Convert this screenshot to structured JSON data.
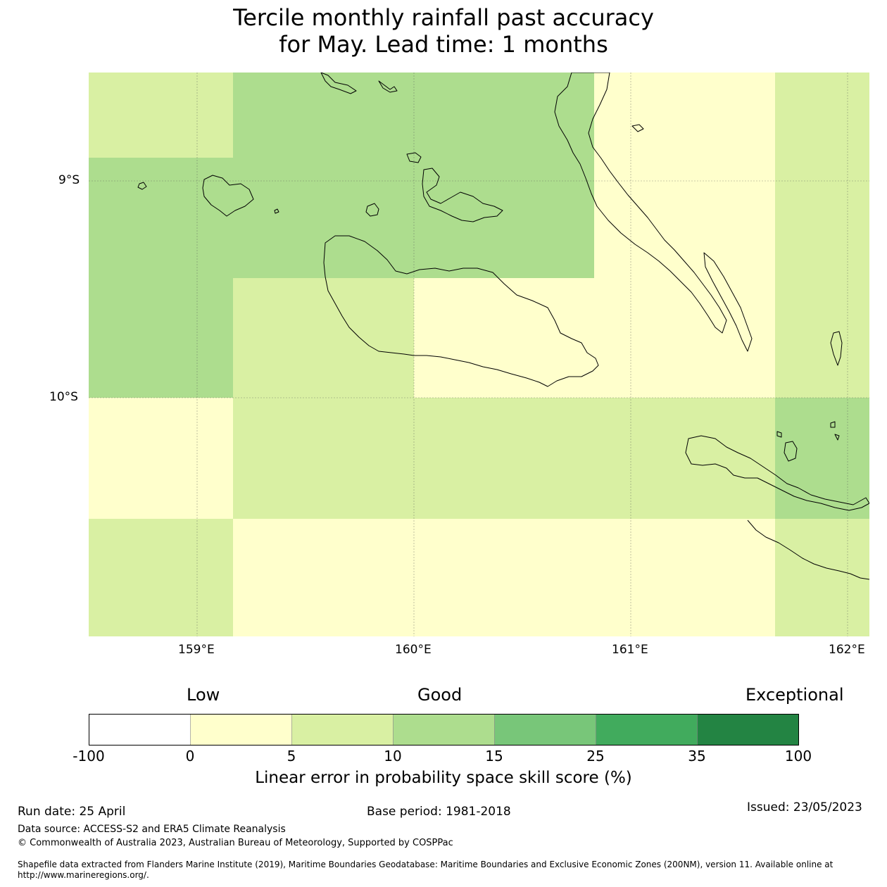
{
  "title": {
    "line1": "Tercile monthly rainfall past accuracy",
    "line2": "for May. Lead time: 1 months"
  },
  "map": {
    "lon_range": [
      158.5,
      162.1
    ],
    "lat_range": [
      -11.1,
      -8.5
    ],
    "x_ticks": [
      "159°E",
      "160°E",
      "161°E",
      "162°E"
    ],
    "y_ticks": [
      "9°S",
      "10°S"
    ],
    "grid": true
  },
  "colorbar": {
    "categories": [
      "Low",
      "Good",
      "Exceptional"
    ],
    "ticks": [
      "-100",
      "0",
      "5",
      "10",
      "15",
      "25",
      "35",
      "100"
    ],
    "colors": [
      "#ffffff",
      "#ffffcc",
      "#d9f0a3",
      "#addd8e",
      "#78c679",
      "#41ab5d",
      "#238443"
    ],
    "label": "Linear error in probability space skill score (%)"
  },
  "footer": {
    "run_date": "Run date: 25 April",
    "base_period": "Base period: 1981-2018",
    "issued": "Issued: 23/05/2023",
    "data_source": "Data source: ACCESS-S2 and ERA5 Climate Reanalysis",
    "copyright": "© Commonwealth of Australia 2023, Australian Bureau of Meteorology, Supported by COSPPac",
    "shapefile": "Shapefile data extracted from Flanders Marine Institute (2019), Maritime Boundaries Geodatabase: Maritime Boundaries and Exclusive Economic Zones (200NM), version 11. Available online at http://www.marineregions.org/."
  }
}
